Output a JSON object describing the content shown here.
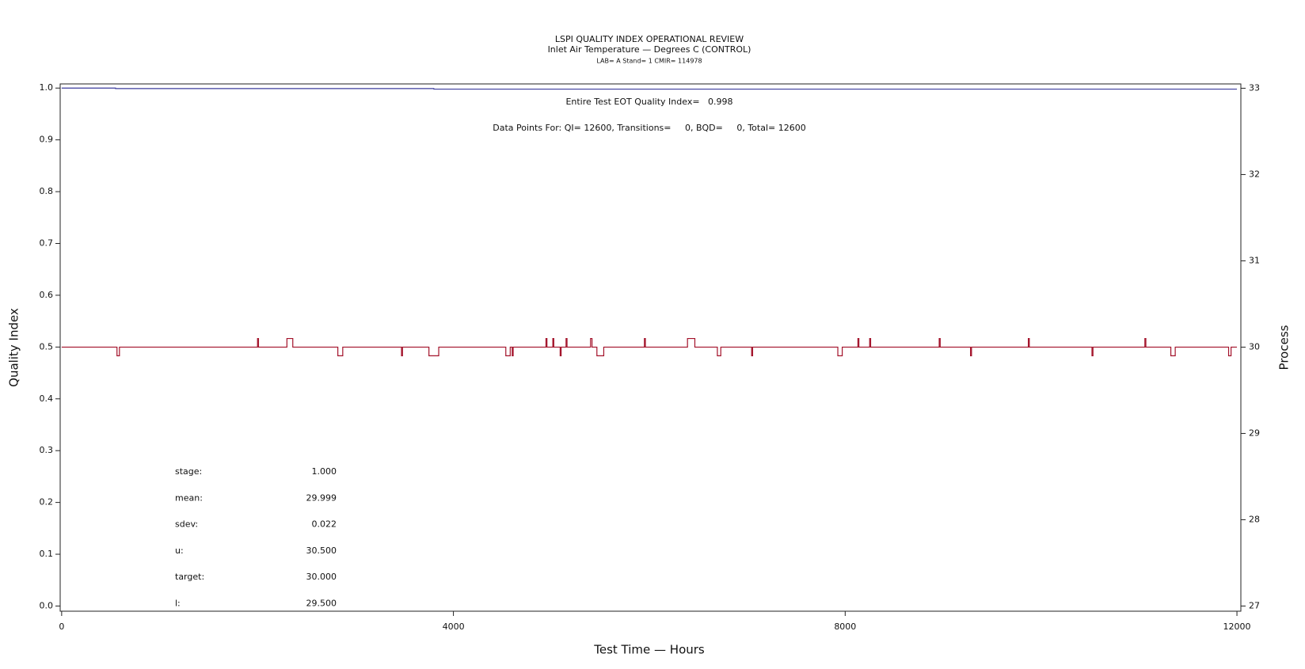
{
  "chart_data": {
    "type": "line",
    "title": "LSPI QUALITY INDEX OPERATIONAL REVIEW",
    "subtitle": "Inlet Air Temperature — Degrees C (CONTROL)",
    "subtitle2": "LAB= A Stand= 1 CMIR= 114978",
    "annotations": [
      "Entire Test EOT Quality Index=   0.998",
      "Data Points For: QI= 12600, Transitions=     0, BQD=     0, Total= 12600"
    ],
    "stats": [
      {
        "label": "stage:",
        "value": "1.000"
      },
      {
        "label": "mean:",
        "value": "29.999"
      },
      {
        "label": "sdev:",
        "value": "0.022"
      },
      {
        "label": "u:",
        "value": "30.500"
      },
      {
        "label": "target:",
        "value": "30.000"
      },
      {
        "label": "l:",
        "value": "29.500"
      }
    ],
    "x_label": "Test Time — Hours",
    "y_label": "Quality Index",
    "y2_label": "Process",
    "xlim": [
      -15,
      12040
    ],
    "xticks": [
      0,
      4000,
      8000,
      12000
    ],
    "ylim": [
      -0.01,
      1.008
    ],
    "yticks": [
      {
        "value": 0,
        "label": "0.0"
      },
      0.1,
      0.2,
      0.3,
      0.4,
      0.5,
      0.6,
      0.7,
      0.8,
      0.9,
      {
        "value": 1,
        "label": "1.0"
      }
    ],
    "y2lim": [
      26.94,
      33.05
    ],
    "y2ticks": [
      27,
      28,
      29,
      30,
      31,
      32,
      33
    ],
    "series": [
      {
        "color": "#3b3b9c",
        "x": [
          0,
          550,
          550,
          3800,
          3800,
          12000
        ],
        "values": [
          1.0,
          1.0,
          0.999,
          0.999,
          0.998,
          0.998
        ]
      },
      {
        "color": "#a3122a",
        "axis": "y2",
        "x": [
          0,
          565,
          565,
          590,
          590,
          2000,
          2000,
          2010,
          2010,
          2300,
          2300,
          2360,
          2360,
          2820,
          2820,
          2870,
          2870,
          3470,
          3470,
          3480,
          3480,
          3750,
          3750,
          3850,
          3850,
          4535,
          4535,
          4580,
          4580,
          4600,
          4600,
          4610,
          4610,
          4945,
          4945,
          4955,
          4955,
          5015,
          5015,
          5025,
          5025,
          5090,
          5090,
          5100,
          5100,
          5150,
          5150,
          5160,
          5160,
          5400,
          5400,
          5415,
          5415,
          5465,
          5465,
          5535,
          5535,
          5950,
          5950,
          5960,
          5960,
          6390,
          6390,
          6465,
          6465,
          6695,
          6695,
          6730,
          6730,
          7045,
          7045,
          7055,
          7055,
          7925,
          7925,
          7970,
          7970,
          8130,
          8130,
          8140,
          8140,
          8250,
          8250,
          8260,
          8260,
          8960,
          8960,
          8970,
          8970,
          9280,
          9280,
          9290,
          9290,
          9870,
          9870,
          9880,
          9880,
          10520,
          10520,
          10530,
          10530,
          11060,
          11060,
          11070,
          11070,
          11325,
          11325,
          11370,
          11370,
          11915,
          11915,
          11940,
          11940,
          12000
        ],
        "values": [
          30,
          30,
          29.9,
          29.9,
          30,
          30,
          30.1,
          30.1,
          30,
          30,
          30.1,
          30.1,
          30,
          30,
          29.9,
          29.9,
          30,
          30,
          29.9,
          29.9,
          30,
          30,
          29.9,
          29.9,
          30,
          30,
          29.9,
          29.9,
          30,
          30,
          29.9,
          29.9,
          30,
          30,
          30.1,
          30.1,
          30,
          30,
          30.1,
          30.1,
          30,
          30,
          29.9,
          29.9,
          30,
          30,
          30.1,
          30.1,
          30,
          30,
          30.1,
          30.1,
          30,
          30,
          29.9,
          29.9,
          30,
          30,
          30.1,
          30.1,
          30,
          30,
          30.1,
          30.1,
          30,
          30,
          29.9,
          29.9,
          30,
          30,
          29.9,
          29.9,
          30,
          30,
          29.9,
          29.9,
          30,
          30,
          30.1,
          30.1,
          30,
          30,
          30.1,
          30.1,
          30,
          30,
          30.1,
          30.1,
          30,
          30,
          29.9,
          29.9,
          30,
          30,
          30.1,
          30.1,
          30,
          30,
          29.9,
          29.9,
          30,
          30,
          30.1,
          30.1,
          30,
          30,
          29.9,
          29.9,
          30,
          30,
          29.9,
          29.9,
          30,
          30
        ]
      }
    ]
  }
}
